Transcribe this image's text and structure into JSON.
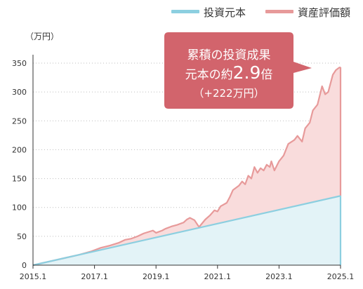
{
  "chart_data": {
    "type": "area",
    "unit_label": "（万円）",
    "x_ticks": [
      "2015.1",
      "2017.1",
      "2019.1",
      "2021.1",
      "2023.1",
      "2025.1"
    ],
    "y_ticks": [
      0,
      50,
      100,
      150,
      200,
      250,
      300,
      350
    ],
    "xlim": [
      2015.0,
      2025.0
    ],
    "ylim": [
      0,
      350
    ],
    "grid": "horizontal dotted",
    "legend_position": "top-right",
    "series": [
      {
        "name": "投資元本",
        "color": "#8ccfe0",
        "fill": "#e3f3f7",
        "x": [
          2015.0,
          2025.0
        ],
        "values": [
          0,
          120
        ]
      },
      {
        "name": "資産評価額",
        "color": "#e79a9a",
        "fill": "#f9dcdc",
        "x": [
          2015.0,
          2015.5,
          2016.0,
          2016.5,
          2016.9,
          2017.2,
          2017.5,
          2017.8,
          2018.0,
          2018.2,
          2018.4,
          2018.6,
          2018.9,
          2019.0,
          2019.2,
          2019.3,
          2019.5,
          2019.7,
          2019.9,
          2020.0,
          2020.1,
          2020.25,
          2020.4,
          2020.6,
          2020.75,
          2020.9,
          2021.0,
          2021.1,
          2021.3,
          2021.4,
          2021.5,
          2021.7,
          2021.8,
          2021.9,
          2022.0,
          2022.1,
          2022.2,
          2022.3,
          2022.4,
          2022.5,
          2022.6,
          2022.7,
          2022.75,
          2022.85,
          2023.0,
          2023.15,
          2023.3,
          2023.5,
          2023.6,
          2023.75,
          2023.85,
          2024.0,
          2024.1,
          2024.25,
          2024.4,
          2024.5,
          2024.6,
          2024.75,
          2024.85,
          2024.95,
          2025.0
        ],
        "values": [
          0,
          6,
          12,
          18,
          24,
          30,
          34,
          39,
          44,
          46,
          50,
          55,
          60,
          56,
          60,
          63,
          67,
          70,
          74,
          79,
          82,
          78,
          66,
          79,
          86,
          95,
          93,
          102,
          108,
          118,
          130,
          138,
          145,
          140,
          155,
          150,
          170,
          160,
          168,
          164,
          174,
          170,
          180,
          164,
          180,
          190,
          210,
          217,
          224,
          214,
          237,
          247,
          268,
          278,
          310,
          296,
          300,
          330,
          338,
          342,
          343
        ]
      }
    ]
  },
  "callout": {
    "line1": "累積の投資成果",
    "line2_prefix": "元本の約",
    "line2_value": "2.9",
    "line2_suffix": "倍",
    "line3": "（+222万円）",
    "bg_color": "#d2646c"
  }
}
